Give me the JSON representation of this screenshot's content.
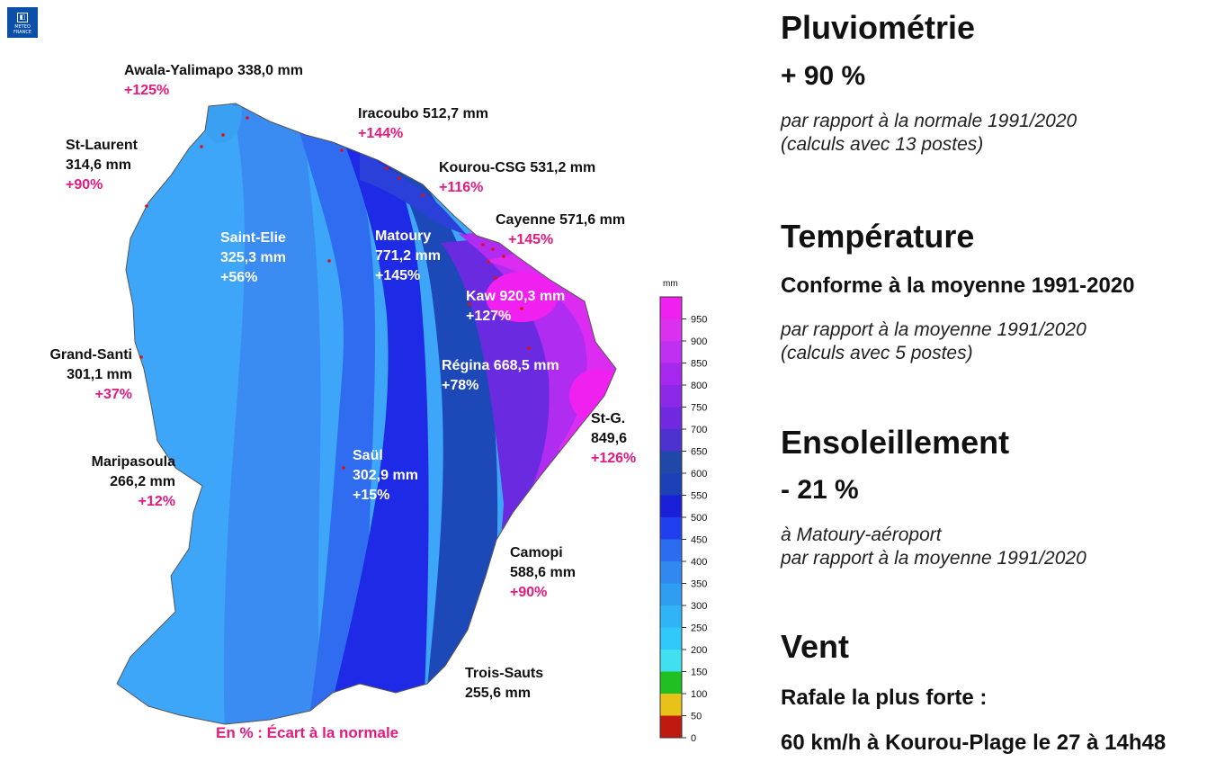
{
  "logo": {
    "line1": "METEO",
    "line2": "FRANCE"
  },
  "stations": [
    {
      "id": "awala",
      "name": "Awala-Yalimapo 338,0 mm",
      "pct": "+125%"
    },
    {
      "id": "iracoubo",
      "name": "Iracoubo 512,7 mm",
      "pct": "+144%"
    },
    {
      "id": "stlaurent",
      "name": "St-Laurent",
      "value": "314,6 mm",
      "pct": "+90%"
    },
    {
      "id": "kourou",
      "name": "Kourou-CSG 531,2 mm",
      "pct": "+116%"
    },
    {
      "id": "cayenne",
      "name": "Cayenne 571,6 mm",
      "pct": "+145%"
    },
    {
      "id": "saintelie",
      "name": "Saint-Elie",
      "value": "325,3 mm",
      "pct": "+56%"
    },
    {
      "id": "matoury",
      "name": "Matoury",
      "value": "771,2 mm",
      "pct": "+145%"
    },
    {
      "id": "kaw",
      "name": "Kaw 920,3 mm",
      "pct": "+127%"
    },
    {
      "id": "grandsanti",
      "name": "Grand-Santi",
      "value": "301,1 mm",
      "pct": "+37%"
    },
    {
      "id": "regina",
      "name": "Régina 668,5 mm",
      "pct": "+78%"
    },
    {
      "id": "stg",
      "name": "St-G.",
      "value": "849,6",
      "pct": "+126%"
    },
    {
      "id": "maripasoula",
      "name": "Maripasoula",
      "value": "266,2 mm",
      "pct": "+12%"
    },
    {
      "id": "saul",
      "name": "Saül",
      "value": "302,9 mm",
      "pct": "+15%"
    },
    {
      "id": "camopi",
      "name": "Camopi",
      "value": "588,6 mm",
      "pct": "+90%"
    },
    {
      "id": "troissauts",
      "name": "Trois-Sauts",
      "value": "255,6 mm"
    }
  ],
  "footnote": "En % : Écart à la normale",
  "color_scale": {
    "unit": "mm",
    "ticks": [
      "0",
      "50",
      "100",
      "150",
      "200",
      "250",
      "300",
      "350",
      "400",
      "450",
      "500",
      "550",
      "600",
      "650",
      "700",
      "750",
      "800",
      "850",
      "900",
      "950"
    ],
    "bands": [
      "#c01a10",
      "#e8c218",
      "#20c020",
      "#40e0f0",
      "#30c8f8",
      "#30b4f8",
      "#309ef0",
      "#3088f0",
      "#2c6cf0",
      "#2040f0",
      "#1a20d8",
      "#1c40b8",
      "#2048a8",
      "#4c30d0",
      "#7028e0",
      "#8c28e8",
      "#a628f0",
      "#c030f0",
      "#dc30f0",
      "#f020f0"
    ]
  },
  "panel": {
    "pluvio": {
      "title": "Pluviométrie",
      "value": "+ 90 %",
      "note1": "par rapport à la normale 1991/2020",
      "note2": "(calculs avec 13 postes)"
    },
    "temp": {
      "title": "Température",
      "value": "Conforme à la moyenne 1991-2020",
      "note1": "par rapport à la moyenne 1991/2020",
      "note2": "(calculs avec 5 postes)"
    },
    "sun": {
      "title": "Ensoleillement",
      "value": "- 21 %",
      "note1": "à Matoury-aéroport",
      "note2": "par rapport à la moyenne 1991/2020"
    },
    "wind": {
      "title": "Vent",
      "value": "Rafale la plus forte :",
      "note1": "60 km/h à Kourou-Plage le 27 à 14h48"
    }
  }
}
